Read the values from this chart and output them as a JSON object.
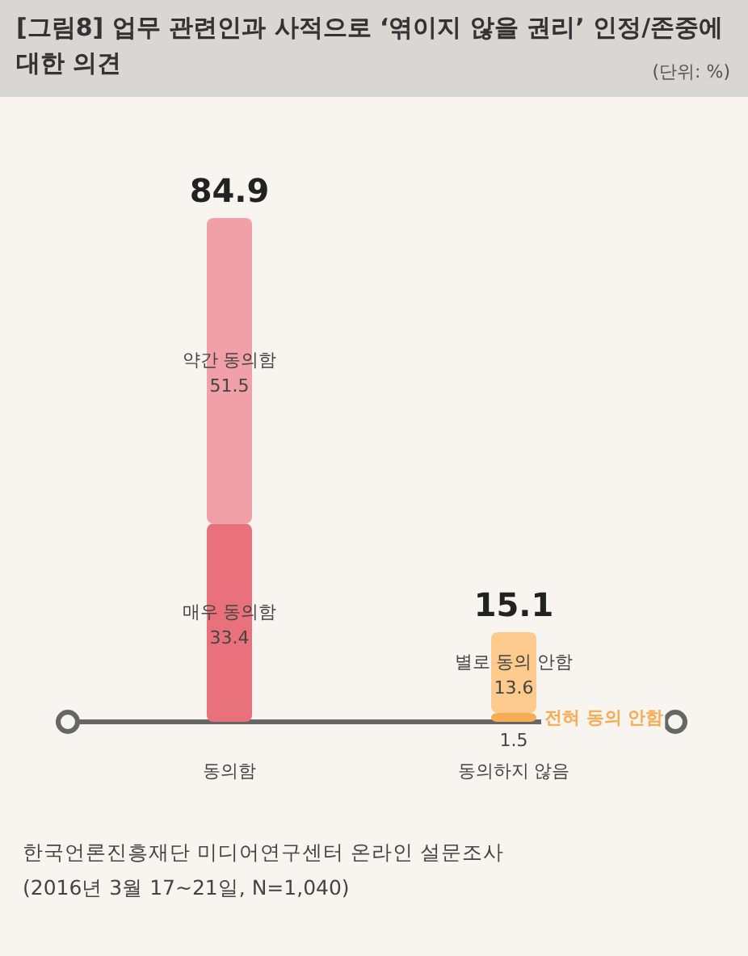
{
  "chart_data": {
    "type": "bar",
    "stacked": true,
    "data_labels": true,
    "title": "[그림8] 업무 관련인과 사적으로 ‘엮이지 않을 권리’ 인정/존중에 대한 의견",
    "subtitle": "(단위: %)",
    "categories": [
      "동의함",
      "동의하지 않음"
    ],
    "series": [
      {
        "name": "매우 동의함",
        "color": "#e8717c",
        "values": [
          33.4,
          null
        ]
      },
      {
        "name": "약간 동의함",
        "color": "#f2a0a8",
        "values": [
          51.5,
          null
        ]
      },
      {
        "name": "전혀 동의 안함",
        "color": "#f7ad55",
        "values": [
          null,
          1.5
        ]
      },
      {
        "name": "별로 동의 안함",
        "color": "#fcca8c",
        "values": [
          null,
          13.6
        ]
      }
    ],
    "totals": [
      "84.9",
      "15.1"
    ],
    "annotations": [
      "한국언론진흥재단 미디어연구센터 온라인 설문조사",
      "(2016년 3월 17~21일, N=1,040)"
    ]
  }
}
